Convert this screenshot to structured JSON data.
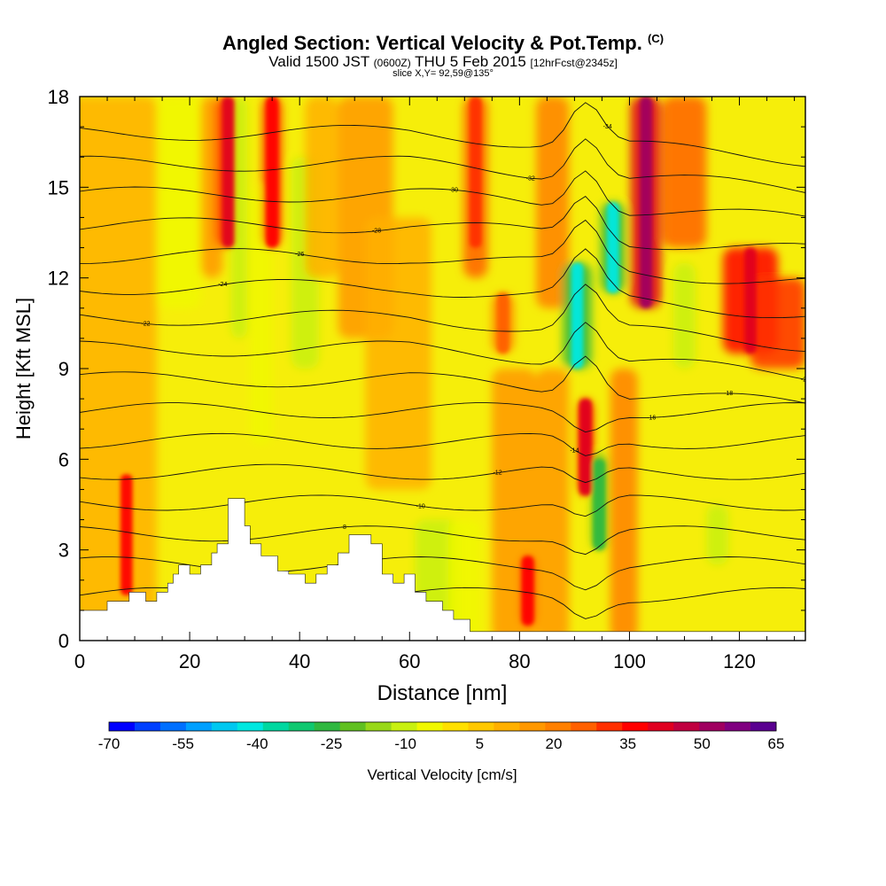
{
  "chart_data": {
    "type": "heatmap",
    "title": "Angled Section: Vertical Velocity & Pot.Temp.",
    "title_units": "(C)",
    "subtitle": {
      "main_a": "Valid 1500 JST",
      "small_a": "(0600Z)",
      "main_b": "THU 5 Feb 2015",
      "small_b": "[12hrFcst@2345z]"
    },
    "slice_label": "slice X,Y= 92,59@135°",
    "xlabel": "Distance [nm]",
    "ylabel": "Height [Kft MSL]",
    "xlim": [
      0,
      132
    ],
    "ylim": [
      0,
      18
    ],
    "x_ticks": [
      "0",
      "20",
      "40",
      "60",
      "80",
      "100",
      "120"
    ],
    "y_ticks": [
      "0",
      "3",
      "6",
      "9",
      "12",
      "15",
      "18"
    ],
    "colorbar": {
      "label": "Vertical Velocity [cm/s]",
      "tick_labels": [
        "-70",
        "-55",
        "-40",
        "-25",
        "-10",
        "5",
        "20",
        "35",
        "50",
        "65"
      ],
      "colors": [
        "#0000ff",
        "#0040ff",
        "#0070ff",
        "#00a0ff",
        "#00c8f0",
        "#00e8e0",
        "#00d8a0",
        "#10c870",
        "#30b840",
        "#60c020",
        "#98d818",
        "#c8f010",
        "#f0f800",
        "#ffe000",
        "#ffc800",
        "#ffb000",
        "#ff9800",
        "#ff8000",
        "#ff6000",
        "#ff3000",
        "#ff0000",
        "#e00020",
        "#c00040",
        "#a00060",
        "#800080",
        "#5a0090"
      ]
    },
    "pot_temp_contour_labels": [
      "-4",
      "-6",
      "-8",
      "-10",
      "-12",
      "-14",
      "-16",
      "-18",
      "-20",
      "-22",
      "-24",
      "-26",
      "-28",
      "-30",
      "-32",
      "-34"
    ],
    "vertical_velocity_features": [
      {
        "x_center": 8.5,
        "y_range": [
          1.5,
          5.5
        ],
        "value": 35
      },
      {
        "x_center": 27,
        "y_range": [
          13,
          18
        ],
        "value": 40
      },
      {
        "x_center": 35,
        "y_range": [
          13,
          18
        ],
        "value": 35
      },
      {
        "x_center": 72,
        "y_range": [
          13,
          18
        ],
        "value": 30
      },
      {
        "x_center": 77,
        "y_range": [
          9.5,
          11.5
        ],
        "value": 25
      },
      {
        "x_center": 81.5,
        "y_range": [
          0.5,
          2.8
        ],
        "value": 35
      },
      {
        "x_center": 90.5,
        "y_range": [
          9,
          12.5
        ],
        "value": -40
      },
      {
        "x_center": 92,
        "y_range": [
          4.8,
          8.0
        ],
        "value": 40
      },
      {
        "x_center": 94.5,
        "y_range": [
          3.0,
          6.0
        ],
        "value": -25
      },
      {
        "x_center": 97,
        "y_range": [
          11.5,
          14.5
        ],
        "value": -40
      },
      {
        "x_center": 103,
        "y_range": [
          11,
          18
        ],
        "value": 50
      },
      {
        "x_center": 122,
        "y_range": [
          9.5,
          13
        ],
        "value": 40
      }
    ]
  }
}
